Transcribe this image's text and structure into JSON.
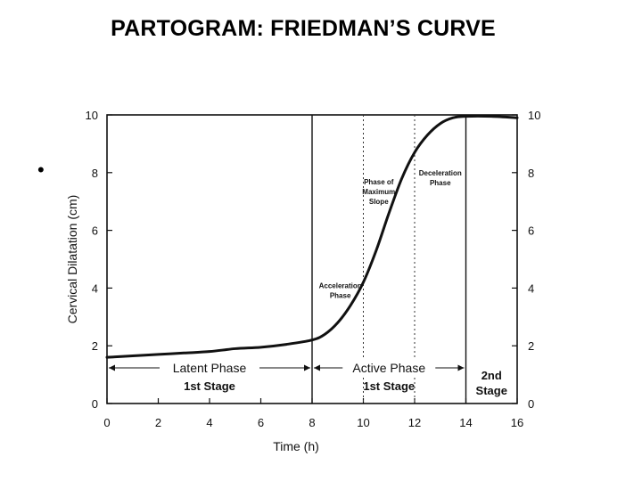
{
  "slide": {
    "title": "PARTOGRAM: FRIEDMAN’S CURVE",
    "bullet": "•"
  },
  "chart_data": {
    "type": "line",
    "title": "",
    "xlabel": "Time (h)",
    "ylabel": "Cervical Dilatation (cm)",
    "xlim": [
      0,
      16
    ],
    "ylim": [
      0,
      10
    ],
    "x_ticks": [
      0,
      2,
      4,
      6,
      8,
      10,
      12,
      14,
      16
    ],
    "y_ticks": [
      0,
      2,
      4,
      6,
      8,
      10
    ],
    "right_y_ticks": [
      0,
      2,
      4,
      6,
      8,
      10
    ],
    "grid": false,
    "series": [
      {
        "x": [
          0,
          1,
          2,
          3,
          4,
          5,
          6,
          7,
          8,
          8.5,
          9,
          9.5,
          10,
          10.5,
          11,
          11.5,
          12,
          12.5,
          13,
          13.5,
          14,
          15,
          16
        ],
        "values": [
          1.6,
          1.65,
          1.7,
          1.75,
          1.8,
          1.9,
          1.95,
          2.05,
          2.2,
          2.4,
          2.8,
          3.4,
          4.2,
          5.3,
          6.6,
          7.8,
          8.7,
          9.3,
          9.7,
          9.9,
          9.95,
          9.95,
          9.9
        ]
      }
    ],
    "boundaries_solid": [
      8,
      14
    ],
    "boundaries_dotted": [
      10,
      12
    ],
    "phases": [
      {
        "label": "Latent Phase",
        "stage": "1st Stage",
        "x_start": 0,
        "x_end": 8
      },
      {
        "label": "Active Phase",
        "stage": "1st Stage",
        "x_start": 8,
        "x_end": 14
      },
      {
        "label": "2nd",
        "stage": "Stage",
        "x_start": 14,
        "x_end": 16
      }
    ],
    "annotations": [
      {
        "lines": [
          "Acceleration",
          "Phase"
        ],
        "x": 9.1,
        "y": 4.0
      },
      {
        "lines": [
          "Phase of",
          "Maximum",
          "Slope"
        ],
        "x": 10.6,
        "y": 7.6
      },
      {
        "lines": [
          "Deceleration",
          "Phase"
        ],
        "x": 13.0,
        "y": 7.9
      }
    ]
  }
}
